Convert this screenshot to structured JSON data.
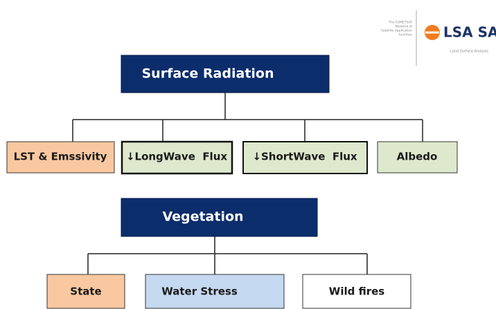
{
  "logo": {
    "tagline": [
      "The EUMETSAT",
      "Network of",
      "Satellite Application",
      "Facilities"
    ],
    "name": "LSA SAF",
    "subtitle": "Land Surface Analysis"
  },
  "nodes": [
    {
      "label": "Surface Radiation"
    },
    {
      "label": "LST & Emssivity"
    },
    {
      "label": "↓LongWave  Flux"
    },
    {
      "label": "↓ShortWave  Flux"
    },
    {
      "label": "Albedo"
    },
    {
      "label": "Vegetation"
    },
    {
      "label": "State"
    },
    {
      "label": "Water Stress"
    },
    {
      "label": "Wild fires"
    }
  ]
}
